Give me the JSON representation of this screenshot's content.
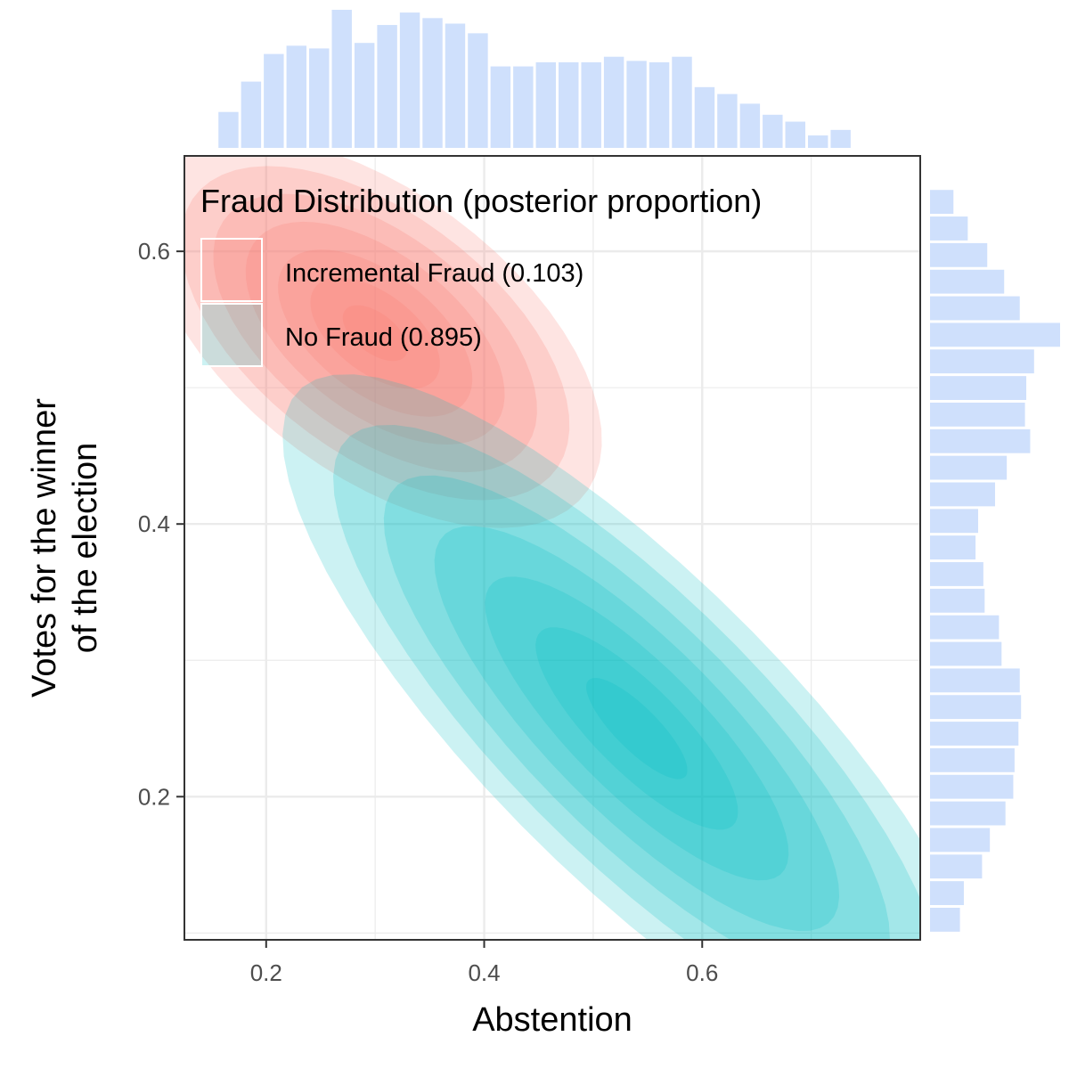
{
  "colors": {
    "fraud": "#f8766d",
    "no_fraud": "#00bfc4",
    "histogram": "#cfe0fc",
    "grid": "#ebebeb",
    "panel_border": "#333333"
  },
  "chart_data": {
    "type": "contour-density",
    "xlabel": "Abstention",
    "ylabel_line1": "Votes for the winner",
    "ylabel_line2": "of the election",
    "xlim": [
      0.125,
      0.8
    ],
    "ylim": [
      0.095,
      0.67
    ],
    "x_ticks": [
      0.2,
      0.4,
      0.6
    ],
    "y_ticks": [
      0.2,
      0.4,
      0.6
    ],
    "x_tick_labels": [
      "0.2",
      "0.4",
      "0.6"
    ],
    "y_tick_labels": [
      "0.2",
      "0.4",
      "0.6"
    ],
    "grid": true,
    "legend": {
      "title": "Fraud Distribution (posterior proportion)",
      "position": "top-left",
      "entries": [
        {
          "key": "fraud",
          "label": "Incremental Fraud (0.103)"
        },
        {
          "key": "no_fraud",
          "label": "No Fraud (0.895)"
        }
      ]
    },
    "series": [
      {
        "key": "fraud",
        "center": [
          0.3,
          0.54
        ],
        "sd": [
          0.08,
          0.055
        ],
        "rho": -0.55,
        "levels": 7
      },
      {
        "key": "no_fraud",
        "center": [
          0.54,
          0.25
        ],
        "sd": [
          0.125,
          0.1
        ],
        "rho": -0.82,
        "levels": 7
      }
    ],
    "top_histogram": {
      "bin_width": 0.0208,
      "x_start": 0.155,
      "counts": [
        0.26,
        0.48,
        0.68,
        0.74,
        0.72,
        1.0,
        0.76,
        0.89,
        0.98,
        0.94,
        0.9,
        0.83,
        0.59,
        0.59,
        0.62,
        0.62,
        0.62,
        0.66,
        0.63,
        0.62,
        0.66,
        0.44,
        0.39,
        0.32,
        0.24,
        0.19,
        0.09,
        0.13
      ]
    },
    "right_histogram": {
      "bin_width": 0.0195,
      "y_start": 0.1,
      "counts": [
        0.23,
        0.26,
        0.4,
        0.46,
        0.58,
        0.64,
        0.65,
        0.68,
        0.7,
        0.69,
        0.55,
        0.53,
        0.42,
        0.41,
        0.35,
        0.37,
        0.5,
        0.59,
        0.77,
        0.73,
        0.74,
        0.8,
        1.0,
        0.69,
        0.57,
        0.44,
        0.29,
        0.18
      ]
    }
  }
}
